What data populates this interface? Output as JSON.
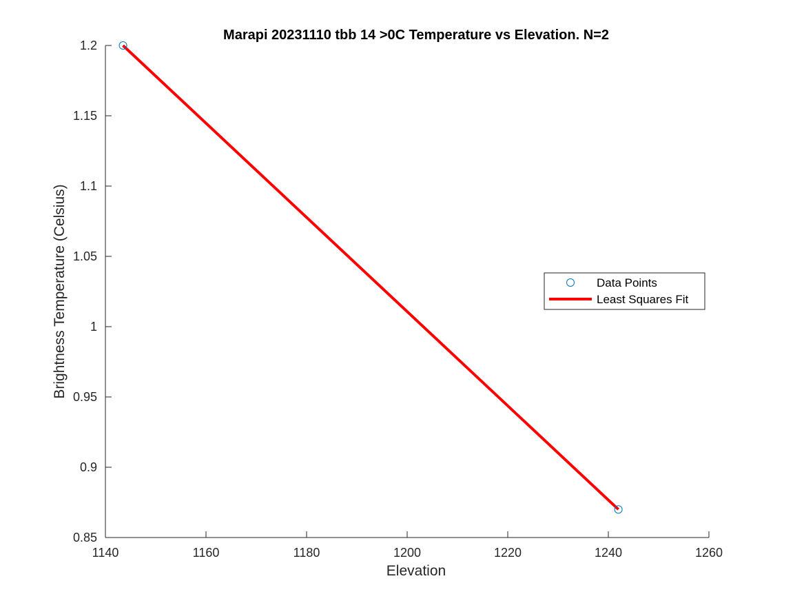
{
  "chart_data": {
    "type": "line",
    "title": "Marapi 20231110 tbb 14 >0C Temperature vs Elevation. N=2",
    "xlabel": "Elevation",
    "ylabel": "Brightness Temperature (Celsius)",
    "xlim": [
      1140,
      1260
    ],
    "ylim": [
      0.85,
      1.2
    ],
    "xticks": [
      1140,
      1160,
      1180,
      1200,
      1220,
      1240,
      1260
    ],
    "yticks": [
      0.85,
      0.9,
      0.95,
      1,
      1.05,
      1.1,
      1.15,
      1.2
    ],
    "grid": false,
    "legend_position": "right",
    "series": [
      {
        "name": "Data Points",
        "style": "markers",
        "color": "#0072BD",
        "x": [
          1143.5,
          1242
        ],
        "y": [
          1.2,
          0.87
        ]
      },
      {
        "name": "Least Squares Fit",
        "style": "line",
        "color": "#FF0000",
        "x": [
          1143.5,
          1242
        ],
        "y": [
          1.2,
          0.87
        ]
      }
    ]
  }
}
